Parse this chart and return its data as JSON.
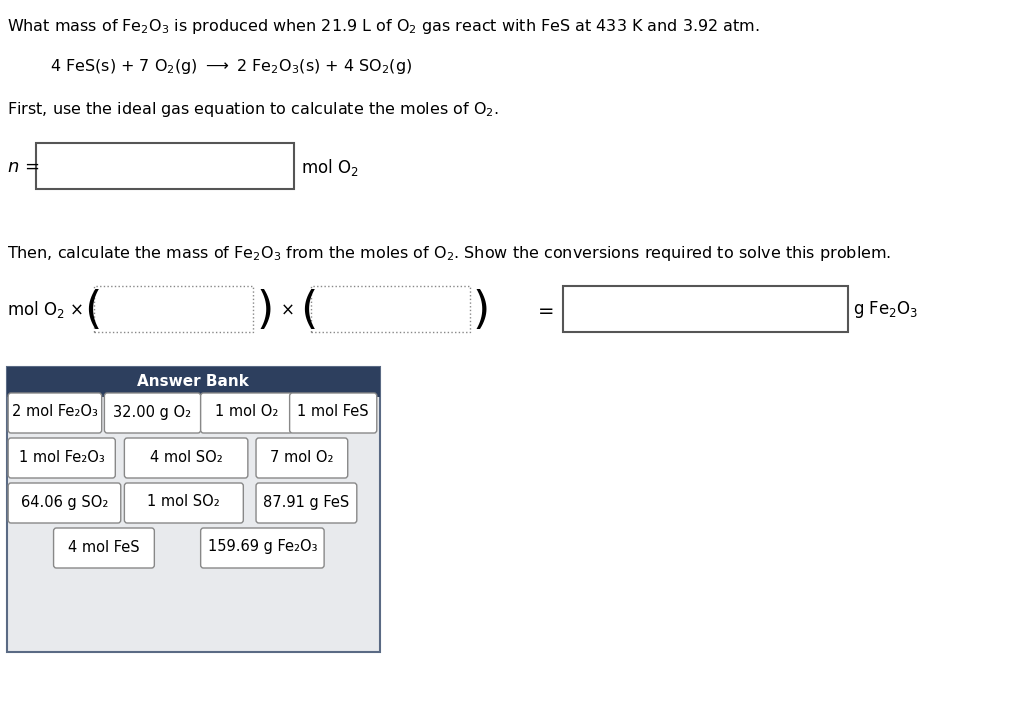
{
  "title_line1": "What mass of Fe₂O₃ is produced when 21.9 L of O₂ gas react with FeS at 433 K and 3.92 atm.",
  "equation": "4 FeS(s) + 7 O₂(g) → 2 Fe₂O₃(s) + 4 SO₂(g)",
  "instruction1": "First, use the ideal gas equation to calculate the moles of O₂.",
  "instruction2": "Then, calculate the mass of Fe₂O₃ from the moles of O₂. Show the conversions required to solve this problem.",
  "n_label": "n =",
  "mol_o2_label": "mol O₂",
  "mol_o2_x_label": "mol O₂ ×",
  "times_label": "×",
  "equals_label": "=",
  "g_fe2o3_label": "g Fe₂O₃",
  "answer_bank_title": "Answer Bank",
  "answer_bank_header_color": "#2d3f5e",
  "answer_bank_bg_color": "#e8eaed",
  "answer_bank_border_color": "#5a6a84",
  "answer_bank_items": [
    [
      "2 mol Fe₂O₃",
      "32.00 g O₂",
      "1 mol O₂",
      "1 mol FeS"
    ],
    [
      "1 mol Fe₂O₃",
      "4 mol SO₂",
      "7 mol O₂"
    ],
    [
      "64.06 g SO₂",
      "1 mol SO₂",
      "87.91 g FeS"
    ],
    [
      "4 mol FeS",
      "159.69 g Fe₂O₃"
    ]
  ],
  "background_color": "#ffffff",
  "text_color": "#000000",
  "font_size_title": 11.5,
  "font_size_equation": 11.5,
  "font_size_instruction": 11.5,
  "font_size_label": 12,
  "font_size_answer": 10.5
}
